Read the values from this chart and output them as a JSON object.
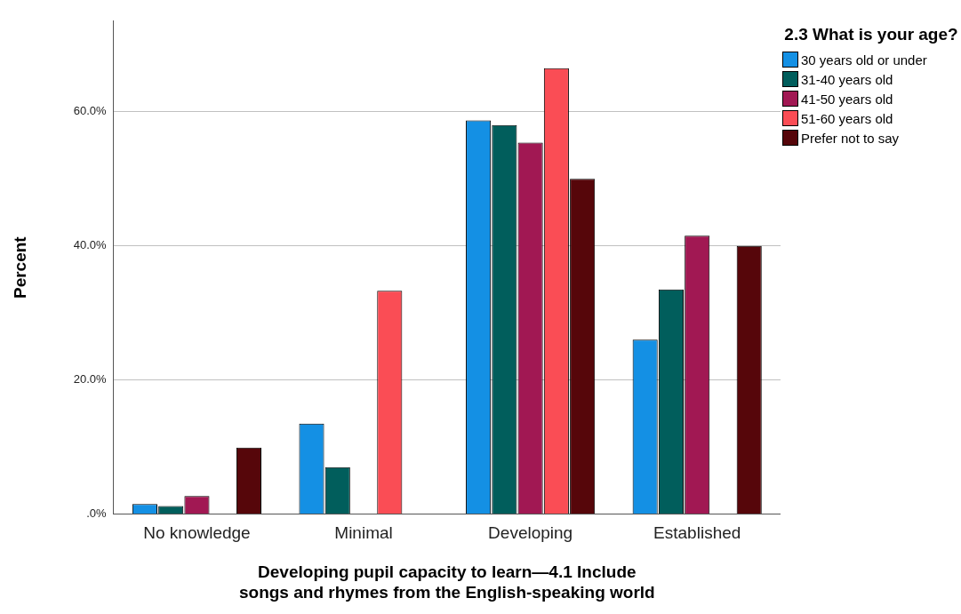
{
  "chart_data": {
    "type": "bar",
    "xlabel": "Developing pupil capacity to learn—4.1 Include songs and rhymes from the English-speaking world",
    "ylabel": "Percent",
    "legend_title": "2.3 What is your age?",
    "legend": "right",
    "grid": "y",
    "categories": [
      "No knowledge",
      "Minimal",
      "Developing",
      "Established"
    ],
    "series": [
      {
        "name": "30 years old or under",
        "color": "#1490e4",
        "values": [
          1.5,
          13.5,
          58.7,
          26.0
        ]
      },
      {
        "name": "31-40 years old",
        "color": "#015e5c",
        "values": [
          1.2,
          7.0,
          58.0,
          33.5
        ]
      },
      {
        "name": "41-50 years old",
        "color": "#a11853",
        "values": [
          2.7,
          0,
          55.4,
          41.5
        ]
      },
      {
        "name": "51-60 years old",
        "color": "#fa4d55",
        "values": [
          0,
          33.3,
          66.5,
          0
        ]
      },
      {
        "name": "Prefer not to say",
        "color": "#56060a",
        "values": [
          9.9,
          0,
          50.0,
          40.0
        ]
      }
    ],
    "ylim": [
      0,
      73.5
    ],
    "yticks": [
      {
        "value": 0,
        "label": ".0%"
      },
      {
        "value": 20,
        "label": "20.0%"
      },
      {
        "value": 40,
        "label": "40.0%"
      },
      {
        "value": 60,
        "label": "60.0%"
      }
    ]
  }
}
